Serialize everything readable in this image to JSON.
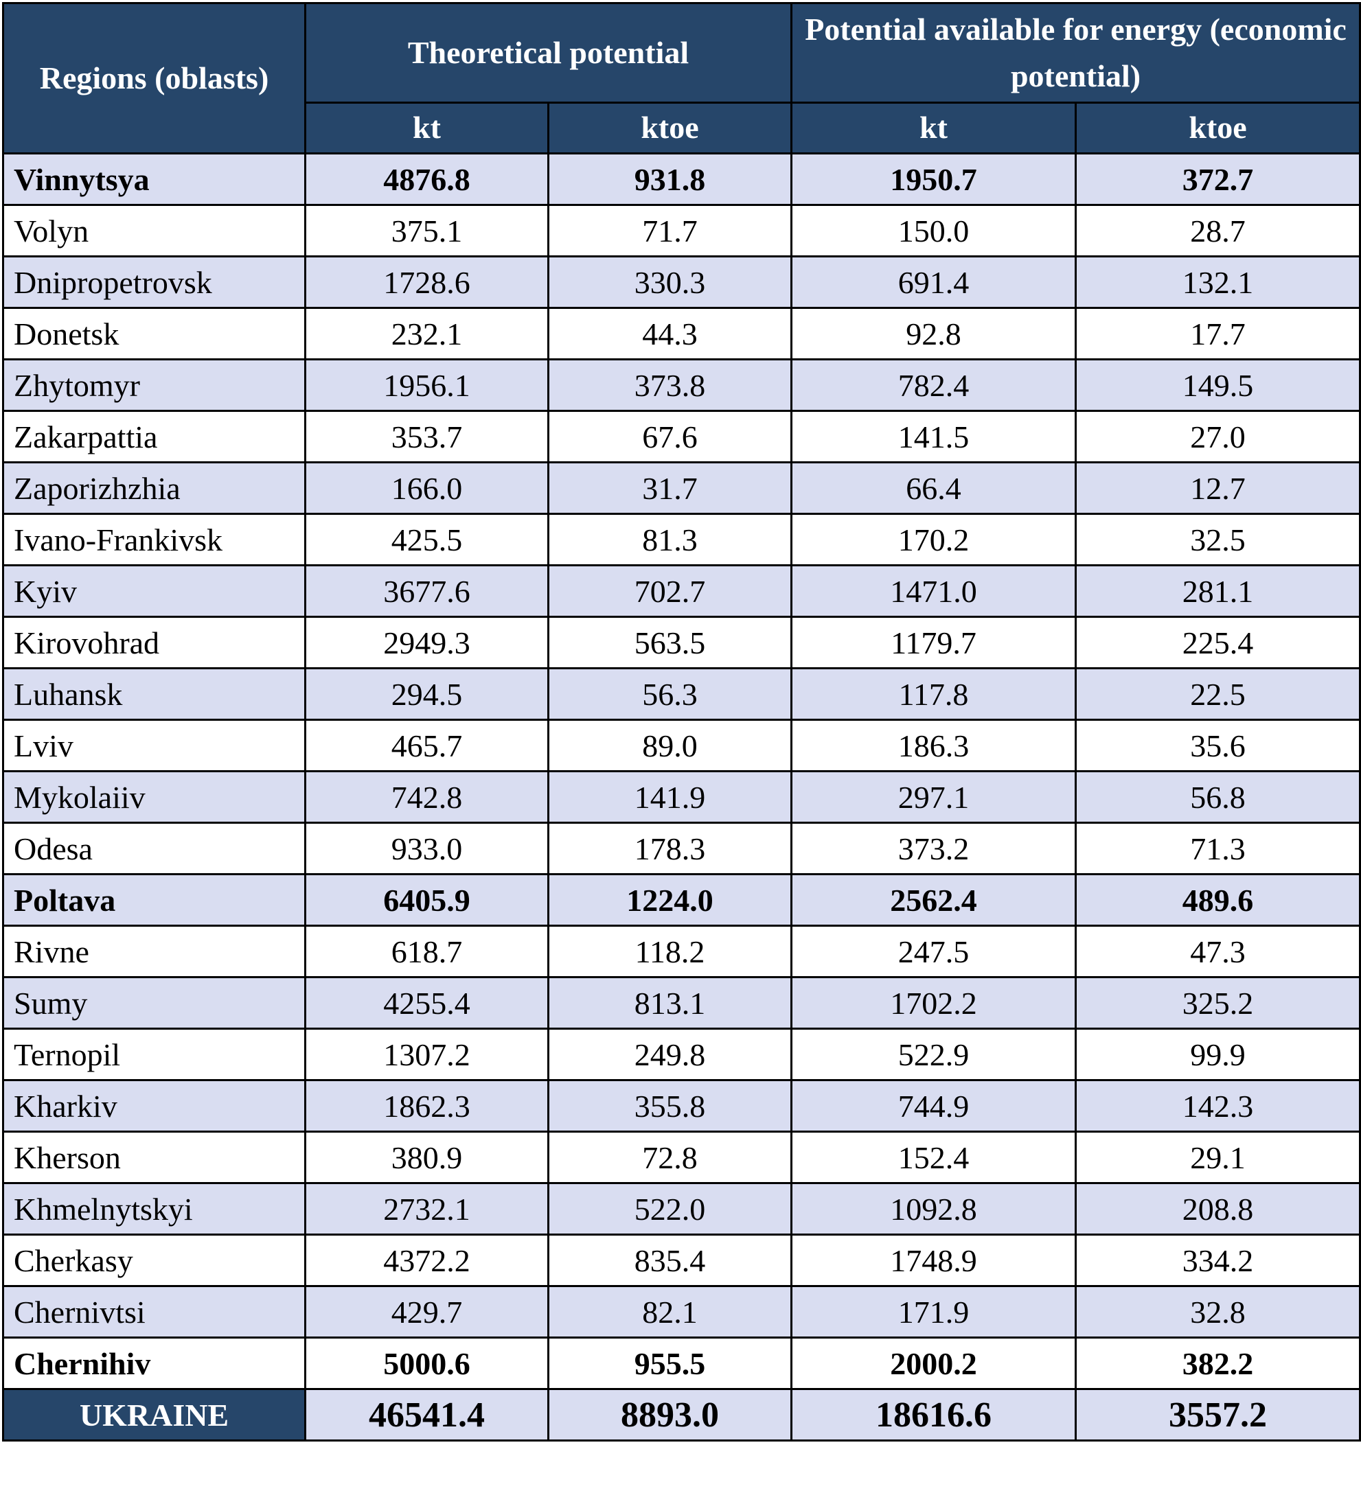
{
  "table": {
    "headers": {
      "region": "Regions (oblasts)",
      "theoretical": "Theoretical potential",
      "economic": "Potential available for energy (economic potential)",
      "unit_kt": "kt",
      "unit_ktoe": "ktoe"
    },
    "rows": [
      {
        "region": "Vinnytsya",
        "theo_kt": "4876.8",
        "theo_ktoe": "931.8",
        "econ_kt": "1950.7",
        "econ_ktoe": "372.7",
        "bold": true
      },
      {
        "region": "Volyn",
        "theo_kt": "375.1",
        "theo_ktoe": "71.7",
        "econ_kt": "150.0",
        "econ_ktoe": "28.7",
        "bold": false
      },
      {
        "region": "Dnipropetrovsk",
        "theo_kt": "1728.6",
        "theo_ktoe": "330.3",
        "econ_kt": "691.4",
        "econ_ktoe": "132.1",
        "bold": false
      },
      {
        "region": "Donetsk",
        "theo_kt": "232.1",
        "theo_ktoe": "44.3",
        "econ_kt": "92.8",
        "econ_ktoe": "17.7",
        "bold": false
      },
      {
        "region": "Zhytomyr",
        "theo_kt": "1956.1",
        "theo_ktoe": "373.8",
        "econ_kt": "782.4",
        "econ_ktoe": "149.5",
        "bold": false
      },
      {
        "region": "Zakarpattia",
        "theo_kt": "353.7",
        "theo_ktoe": "67.6",
        "econ_kt": "141.5",
        "econ_ktoe": "27.0",
        "bold": false
      },
      {
        "region": "Zaporizhzhia",
        "theo_kt": "166.0",
        "theo_ktoe": "31.7",
        "econ_kt": "66.4",
        "econ_ktoe": "12.7",
        "bold": false
      },
      {
        "region": "Ivano-Frankivsk",
        "theo_kt": "425.5",
        "theo_ktoe": "81.3",
        "econ_kt": "170.2",
        "econ_ktoe": "32.5",
        "bold": false
      },
      {
        "region": "Kyiv",
        "theo_kt": "3677.6",
        "theo_ktoe": "702.7",
        "econ_kt": "1471.0",
        "econ_ktoe": "281.1",
        "bold": false
      },
      {
        "region": "Kirovohrad",
        "theo_kt": "2949.3",
        "theo_ktoe": "563.5",
        "econ_kt": "1179.7",
        "econ_ktoe": "225.4",
        "bold": false
      },
      {
        "region": "Luhansk",
        "theo_kt": "294.5",
        "theo_ktoe": "56.3",
        "econ_kt": "117.8",
        "econ_ktoe": "22.5",
        "bold": false
      },
      {
        "region": "Lviv",
        "theo_kt": "465.7",
        "theo_ktoe": "89.0",
        "econ_kt": "186.3",
        "econ_ktoe": "35.6",
        "bold": false
      },
      {
        "region": "Mykolaiiv",
        "theo_kt": "742.8",
        "theo_ktoe": "141.9",
        "econ_kt": "297.1",
        "econ_ktoe": "56.8",
        "bold": false
      },
      {
        "region": "Odesa",
        "theo_kt": "933.0",
        "theo_ktoe": "178.3",
        "econ_kt": "373.2",
        "econ_ktoe": "71.3",
        "bold": false
      },
      {
        "region": "Poltava",
        "theo_kt": "6405.9",
        "theo_ktoe": "1224.0",
        "econ_kt": "2562.4",
        "econ_ktoe": "489.6",
        "bold": true
      },
      {
        "region": "Rivne",
        "theo_kt": "618.7",
        "theo_ktoe": "118.2",
        "econ_kt": "247.5",
        "econ_ktoe": "47.3",
        "bold": false
      },
      {
        "region": "Sumy",
        "theo_kt": "4255.4",
        "theo_ktoe": "813.1",
        "econ_kt": "1702.2",
        "econ_ktoe": "325.2",
        "bold": false
      },
      {
        "region": "Ternopil",
        "theo_kt": "1307.2",
        "theo_ktoe": "249.8",
        "econ_kt": "522.9",
        "econ_ktoe": "99.9",
        "bold": false
      },
      {
        "region": "Kharkiv",
        "theo_kt": "1862.3",
        "theo_ktoe": "355.8",
        "econ_kt": "744.9",
        "econ_ktoe": "142.3",
        "bold": false
      },
      {
        "region": "Kherson",
        "theo_kt": "380.9",
        "theo_ktoe": "72.8",
        "econ_kt": "152.4",
        "econ_ktoe": "29.1",
        "bold": false
      },
      {
        "region": "Khmelnytskyi",
        "theo_kt": "2732.1",
        "theo_ktoe": "522.0",
        "econ_kt": "1092.8",
        "econ_ktoe": "208.8",
        "bold": false
      },
      {
        "region": "Cherkasy",
        "theo_kt": "4372.2",
        "theo_ktoe": "835.4",
        "econ_kt": "1748.9",
        "econ_ktoe": "334.2",
        "bold": false
      },
      {
        "region": "Chernivtsi",
        "theo_kt": "429.7",
        "theo_ktoe": "82.1",
        "econ_kt": "171.9",
        "econ_ktoe": "32.8",
        "bold": false
      },
      {
        "region": "Chernihiv",
        "theo_kt": "5000.6",
        "theo_ktoe": "955.5",
        "econ_kt": "2000.2",
        "econ_ktoe": "382.2",
        "bold": true
      }
    ],
    "total": {
      "region": "UKRAINE",
      "theo_kt": "46541.4",
      "theo_ktoe": "8893.0",
      "econ_kt": "18616.6",
      "econ_ktoe": "3557.2"
    },
    "colors": {
      "header_bg": "#26466a",
      "shaded_row": "#d9ddf1",
      "plain_row": "#ffffff"
    }
  }
}
